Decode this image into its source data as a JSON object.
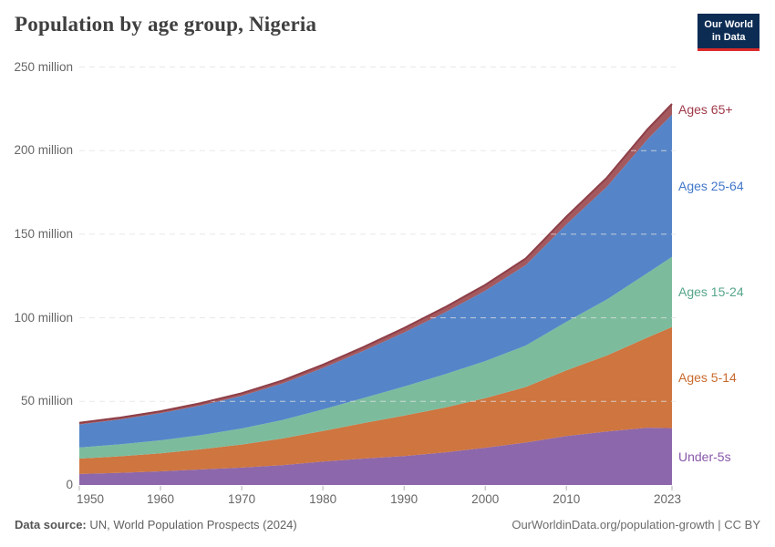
{
  "header": {
    "title": "Population by age group, Nigeria",
    "logo": {
      "line1": "Our World",
      "line2": "in Data",
      "bg_color": "#0c2c54",
      "bar_color": "#dc2a2a"
    }
  },
  "footer": {
    "source_label": "Data source:",
    "source_text": "UN, World Population Prospects (2024)",
    "credit": "OurWorldinData.org/population-growth | CC BY"
  },
  "chart_data": {
    "type": "area",
    "stacked": true,
    "title": "Population by age group, Nigeria",
    "unit": "million people",
    "x": [
      1950,
      1955,
      1960,
      1965,
      1970,
      1975,
      1980,
      1985,
      1990,
      1995,
      2000,
      2005,
      2010,
      2015,
      2020,
      2023
    ],
    "series": [
      {
        "name": "Under-5s",
        "color": "#8d67ab",
        "label_color": "#8859aa",
        "values": [
          6.6,
          7.3,
          8.2,
          9.3,
          10.4,
          11.9,
          14.0,
          15.8,
          17.3,
          19.5,
          22.3,
          25.4,
          29.3,
          32.0,
          34.3,
          34.0
        ]
      },
      {
        "name": "Ages 5-14",
        "color": "#ce7540",
        "label_color": "#c96a2e",
        "values": [
          9.2,
          9.9,
          10.8,
          12.1,
          13.8,
          15.9,
          18.3,
          21.2,
          24.2,
          26.8,
          29.6,
          33.2,
          39.3,
          45.5,
          54.0,
          60.5
        ]
      },
      {
        "name": "Ages 15-24",
        "color": "#7cbc9d",
        "label_color": "#55a58a",
        "values": [
          6.6,
          7.1,
          7.7,
          8.5,
          9.6,
          11.1,
          12.9,
          15.0,
          17.4,
          19.9,
          22.2,
          24.8,
          29.0,
          33.5,
          38.5,
          42.0
        ]
      },
      {
        "name": "Ages 25-64",
        "color": "#5585c8",
        "label_color": "#4277c9",
        "values": [
          13.8,
          14.9,
          16.2,
          17.7,
          19.5,
          21.8,
          24.7,
          28.2,
          32.3,
          36.9,
          42.1,
          48.1,
          58.3,
          67.5,
          80.0,
          85.0
        ]
      },
      {
        "name": "Ages 65+",
        "color": "#a4595f",
        "label_color": "#a03a4a",
        "top_stroke": "#8d3f48",
        "values": [
          1.0,
          1.1,
          1.2,
          1.4,
          1.6,
          1.8,
          2.0,
          2.3,
          2.7,
          3.1,
          3.5,
          4.0,
          4.6,
          5.4,
          6.0,
          6.4
        ]
      }
    ],
    "xlim": [
      1950,
      2023
    ],
    "ylim": [
      0,
      250
    ],
    "yticks": {
      "values": [
        0,
        50,
        100,
        150,
        200,
        250
      ],
      "labels": [
        "0",
        "50 million",
        "100 million",
        "150 million",
        "200 million",
        "250 million"
      ]
    },
    "xticks": {
      "values": [
        1950,
        1960,
        1970,
        1980,
        1990,
        2000,
        2010,
        2023
      ],
      "labels": [
        "1950",
        "1960",
        "1970",
        "1980",
        "1990",
        "2000",
        "2010",
        "2023"
      ]
    },
    "grid": "horizontal-dashed",
    "gridline_color": "#e2e2e2",
    "tick_color": "#b3b3b3",
    "legend_position": "right-edge-labels"
  }
}
